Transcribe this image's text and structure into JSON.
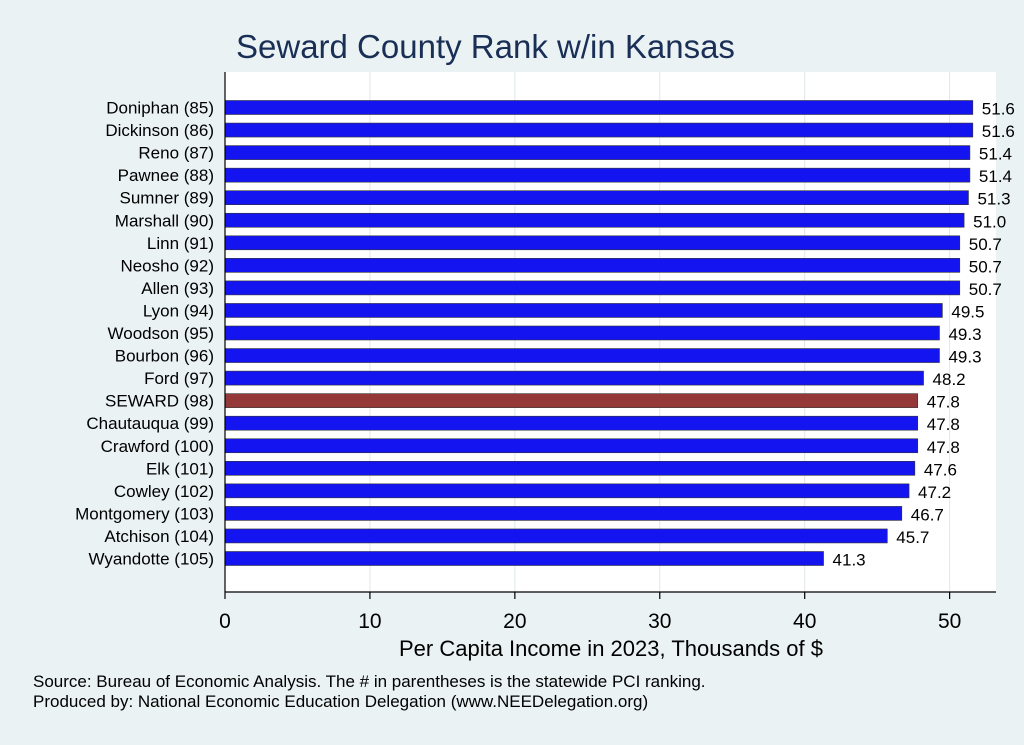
{
  "chart_data": {
    "type": "bar",
    "orientation": "horizontal",
    "title": "Seward County Rank w/in Kansas",
    "xlabel": "Per Capita Income in 2023, Thousands of $",
    "xlim": [
      0,
      53.2
    ],
    "x_ticks": [
      0,
      10,
      20,
      30,
      40,
      50
    ],
    "grid": true,
    "categories": [
      "Doniphan (85)",
      "Dickinson (86)",
      "Reno (87)",
      "Pawnee (88)",
      "Sumner (89)",
      "Marshall (90)",
      "Linn (91)",
      "Neosho (92)",
      "Allen (93)",
      "Lyon (94)",
      "Woodson (95)",
      "Bourbon (96)",
      "Ford (97)",
      "SEWARD (98)",
      "Chautauqua (99)",
      "Crawford (100)",
      "Elk (101)",
      "Cowley (102)",
      "Montgomery (103)",
      "Atchison (104)",
      "Wyandotte (105)"
    ],
    "values": [
      51.6,
      51.6,
      51.4,
      51.4,
      51.3,
      51.0,
      50.7,
      50.7,
      50.7,
      49.5,
      49.3,
      49.3,
      48.2,
      47.8,
      47.8,
      47.8,
      47.6,
      47.2,
      46.7,
      45.7,
      41.3
    ],
    "value_labels": [
      "51.6",
      "51.6",
      "51.4",
      "51.4",
      "51.3",
      "51.0",
      "50.7",
      "50.7",
      "50.7",
      "49.5",
      "49.3",
      "49.3",
      "48.2",
      "47.8",
      "47.8",
      "47.8",
      "47.6",
      "47.2",
      "46.7",
      "45.7",
      "41.3"
    ],
    "highlight_index": 13,
    "colors": {
      "bar": "#1414f0",
      "highlight": "#943838",
      "grid": "#dfe8ea",
      "background": "#eaf2f3"
    }
  },
  "notes": {
    "source": "Source: Bureau of Economic Analysis. The # in parentheses is the statewide PCI ranking.",
    "produced": "Produced by: National Economic Education Delegation (www.NEEDelegation.org)"
  }
}
